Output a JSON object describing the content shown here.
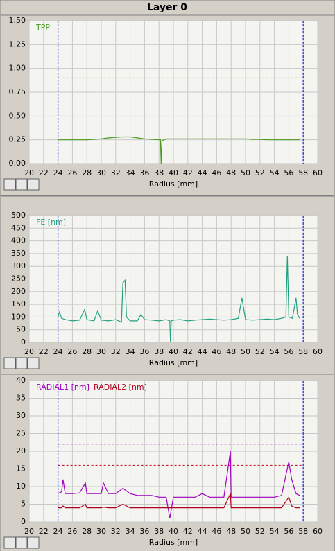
{
  "title": "Layer 0",
  "chart_data": [
    {
      "type": "line",
      "xlabel": "Radius [mm]",
      "xlim": [
        20,
        60
      ],
      "xticks": [
        20,
        22,
        24,
        26,
        28,
        30,
        32,
        34,
        36,
        38,
        40,
        42,
        44,
        46,
        48,
        50,
        52,
        54,
        56,
        58,
        60
      ],
      "ylim": [
        0,
        1.5
      ],
      "yticks": [
        {
          "value": 0,
          "label": "0.00"
        },
        {
          "value": 0.25,
          "label": "0.25"
        },
        {
          "value": 0.5,
          "label": "0.50"
        },
        {
          "value": 0.75,
          "label": "0.75"
        },
        {
          "value": 1,
          "label": "1.00"
        },
        {
          "value": 1.25,
          "label": "1.25"
        },
        {
          "value": 1.5,
          "label": "1.50"
        }
      ],
      "grid": true,
      "x_markers": [
        24,
        58
      ],
      "x_marker_color": "#3030e0",
      "reference_lines": [
        {
          "value": 0.9,
          "color": "#60a020"
        }
      ],
      "x": [
        24,
        25,
        26,
        27,
        28,
        29,
        30,
        31,
        32,
        33,
        34,
        35,
        36,
        37,
        38,
        38.2,
        38.3,
        38.4,
        39,
        40,
        41,
        42,
        43,
        44,
        45,
        46,
        47,
        48,
        49,
        50,
        51,
        52,
        53,
        54,
        55,
        56,
        57,
        57.5
      ],
      "series": [
        {
          "name": "TPP",
          "color": "#4a9a20",
          "values": [
            0.25,
            0.25,
            0.25,
            0.25,
            0.25,
            0.255,
            0.26,
            0.27,
            0.275,
            0.28,
            0.28,
            0.27,
            0.26,
            0.255,
            0.25,
            0.25,
            0,
            0.24,
            0.26,
            0.26,
            0.26,
            0.26,
            0.26,
            0.26,
            0.26,
            0.26,
            0.26,
            0.26,
            0.26,
            0.26,
            0.255,
            0.255,
            0.25,
            0.25,
            0.25,
            0.25,
            0.25,
            0.25
          ]
        }
      ]
    },
    {
      "type": "line",
      "xlabel": "Radius [mm]",
      "xlim": [
        20,
        60
      ],
      "xticks": [
        20,
        22,
        24,
        26,
        28,
        30,
        32,
        34,
        36,
        38,
        40,
        42,
        44,
        46,
        48,
        50,
        52,
        54,
        56,
        58,
        60
      ],
      "ylim": [
        0,
        500
      ],
      "yticks": [
        0,
        50,
        100,
        150,
        200,
        250,
        300,
        350,
        400,
        450,
        500
      ],
      "grid": true,
      "x_markers": [
        24,
        58
      ],
      "x_marker_color": "#3030e0",
      "reference_lines": [],
      "x": [
        24,
        24.2,
        24.5,
        25,
        26,
        27,
        27.7,
        28,
        29,
        29.5,
        30,
        31,
        32,
        32.8,
        33,
        33.3,
        33.5,
        34,
        35,
        35.5,
        36,
        37,
        38,
        39,
        39.5,
        39.6,
        39.7,
        40,
        41,
        42,
        43,
        44,
        45,
        46,
        47,
        48,
        49,
        49.5,
        50,
        51,
        52,
        53,
        54,
        55,
        55.6,
        55.8,
        56,
        56.5,
        57,
        57.2,
        57.5
      ],
      "series": [
        {
          "name": "FE [nm]",
          "color": "#20a080",
          "values": [
            100,
            120,
            95,
            90,
            85,
            88,
            130,
            90,
            85,
            125,
            88,
            85,
            90,
            80,
            235,
            245,
            100,
            85,
            85,
            110,
            90,
            88,
            85,
            90,
            85,
            0,
            85,
            88,
            90,
            85,
            88,
            90,
            92,
            90,
            88,
            90,
            95,
            175,
            90,
            88,
            90,
            92,
            90,
            95,
            100,
            340,
            100,
            95,
            175,
            110,
            95
          ]
        }
      ]
    },
    {
      "type": "line",
      "xlabel": "Radius [mm]",
      "xlim": [
        20,
        60
      ],
      "xticks": [
        20,
        22,
        24,
        26,
        28,
        30,
        32,
        34,
        36,
        38,
        40,
        42,
        44,
        46,
        48,
        50,
        52,
        54,
        56,
        58,
        60
      ],
      "ylim": [
        0,
        40
      ],
      "yticks": [
        0,
        5,
        10,
        15,
        20,
        25,
        30,
        35,
        40
      ],
      "grid": true,
      "x_markers": [
        24,
        58
      ],
      "x_marker_color": "#3030e0",
      "reference_lines": [
        {
          "value": 22,
          "color": "#a000c0"
        },
        {
          "value": 16,
          "color": "#c00020"
        }
      ],
      "x": [
        24,
        24.5,
        24.7,
        25,
        26,
        27,
        27.8,
        28,
        29,
        30,
        30.3,
        31,
        32,
        33,
        34,
        35,
        36,
        37,
        38,
        39,
        39.5,
        40,
        41,
        42,
        43,
        44,
        45,
        46,
        47,
        47.9,
        48,
        49,
        50,
        51,
        52,
        53,
        54,
        55,
        56,
        56.4,
        57,
        57.5
      ],
      "series": [
        {
          "name": "RADIAL1 [nm]",
          "color": "#a000c0",
          "values": [
            8,
            8.5,
            12,
            8,
            8,
            8.2,
            11,
            8,
            8,
            8,
            11,
            8,
            8,
            9.5,
            8,
            7.5,
            7.5,
            7.5,
            7,
            7,
            1,
            7,
            7,
            7,
            7,
            8,
            7,
            7,
            7,
            20,
            7,
            7,
            7,
            7,
            7,
            7,
            7,
            7.5,
            17,
            12,
            8,
            7.5
          ]
        },
        {
          "name": "RADIAL2 [nm]",
          "color": "#b00020",
          "values": [
            4,
            4,
            4.5,
            4,
            4,
            4,
            5,
            4,
            4,
            4,
            4.2,
            4,
            4,
            5,
            4,
            4,
            4,
            4,
            4,
            4,
            4,
            4,
            4,
            4,
            4,
            4,
            4,
            4,
            4,
            8,
            4,
            4,
            4,
            4,
            4,
            4,
            4,
            4,
            7,
            4.5,
            4,
            4
          ]
        }
      ]
    }
  ]
}
